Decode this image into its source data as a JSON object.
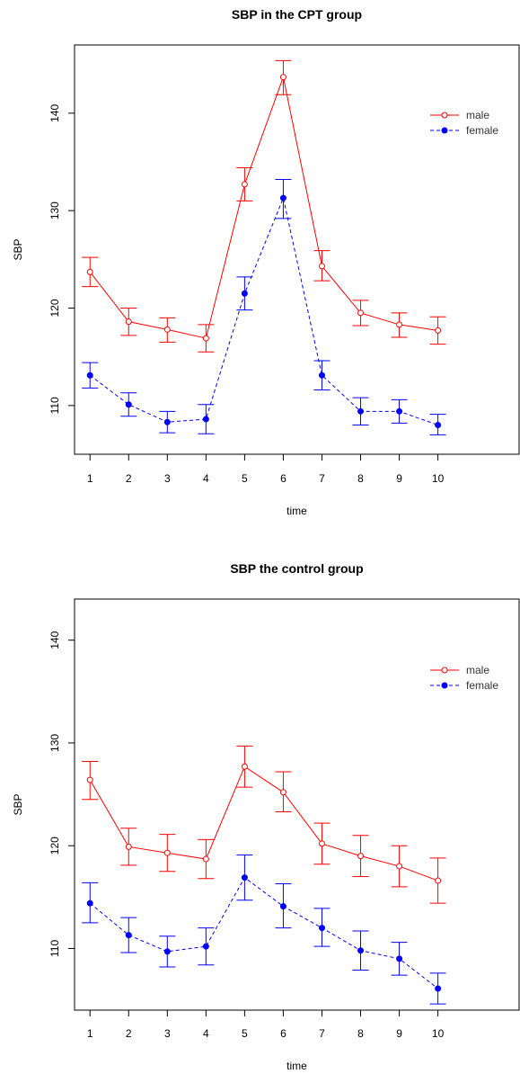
{
  "chart_data": [
    {
      "type": "line",
      "title": "SBP in the CPT group",
      "xlabel": "time",
      "ylabel": "SBP",
      "x": [
        1,
        2,
        3,
        4,
        5,
        6,
        7,
        8,
        9,
        10
      ],
      "x_ticks": [
        "1",
        "2",
        "3",
        "4",
        "5",
        "6",
        "7",
        "8",
        "9",
        "10"
      ],
      "y_ticks": [
        "110",
        "120",
        "130",
        "140"
      ],
      "xlim": [
        0.6,
        12.1
      ],
      "ylim": [
        105,
        147
      ],
      "legend_position": "top-right",
      "series": [
        {
          "name": "male",
          "color": "#ff0000",
          "marker": "open-circle",
          "line": "solid",
          "values": [
            123.7,
            118.6,
            117.8,
            116.9,
            132.7,
            143.7,
            124.3,
            119.5,
            118.3,
            117.7
          ],
          "err_low": [
            122.2,
            117.2,
            116.5,
            115.5,
            131.0,
            141.9,
            122.8,
            118.2,
            117.0,
            116.3
          ],
          "err_high": [
            125.2,
            120.0,
            119.0,
            118.3,
            134.4,
            145.4,
            125.9,
            120.8,
            119.5,
            119.1
          ]
        },
        {
          "name": "female",
          "color": "#0000ff",
          "marker": "filled-circle",
          "line": "dashed",
          "values": [
            113.1,
            110.1,
            108.3,
            108.6,
            121.5,
            131.3,
            113.1,
            109.4,
            109.4,
            108.0
          ],
          "err_low": [
            111.8,
            108.9,
            107.2,
            107.1,
            119.8,
            129.2,
            111.6,
            108.0,
            108.2,
            107.0
          ],
          "err_high": [
            114.4,
            111.3,
            109.4,
            110.1,
            123.2,
            133.2,
            114.6,
            110.8,
            110.6,
            109.1
          ]
        }
      ]
    },
    {
      "type": "line",
      "title": "SBP the control group",
      "xlabel": "time",
      "ylabel": "SBP",
      "x": [
        1,
        2,
        3,
        4,
        5,
        6,
        7,
        8,
        9,
        10
      ],
      "x_ticks": [
        "1",
        "2",
        "3",
        "4",
        "5",
        "6",
        "7",
        "8",
        "9",
        "10"
      ],
      "y_ticks": [
        "110",
        "120",
        "130",
        "140"
      ],
      "xlim": [
        0.6,
        12.1
      ],
      "ylim": [
        104,
        144
      ],
      "legend_position": "top-right",
      "series": [
        {
          "name": "male",
          "color": "#ff0000",
          "marker": "open-circle",
          "line": "solid",
          "values": [
            126.4,
            119.9,
            119.3,
            118.7,
            127.7,
            125.2,
            120.2,
            119.0,
            118.0,
            116.6
          ],
          "err_low": [
            124.5,
            118.1,
            117.5,
            116.8,
            125.7,
            123.3,
            118.2,
            117.0,
            116.0,
            114.4
          ],
          "err_high": [
            128.2,
            121.7,
            121.1,
            120.6,
            129.7,
            127.2,
            122.2,
            121.0,
            120.0,
            118.8
          ]
        },
        {
          "name": "female",
          "color": "#0000ff",
          "marker": "filled-circle",
          "line": "dashed",
          "values": [
            114.4,
            111.3,
            109.7,
            110.2,
            116.9,
            114.1,
            112.0,
            109.8,
            109.0,
            106.1
          ],
          "err_low": [
            112.5,
            109.6,
            108.2,
            108.4,
            114.7,
            112.0,
            110.2,
            107.9,
            107.4,
            104.6
          ],
          "err_high": [
            116.4,
            113.0,
            111.2,
            112.0,
            119.1,
            116.3,
            113.9,
            111.7,
            110.6,
            107.6
          ]
        }
      ]
    }
  ]
}
